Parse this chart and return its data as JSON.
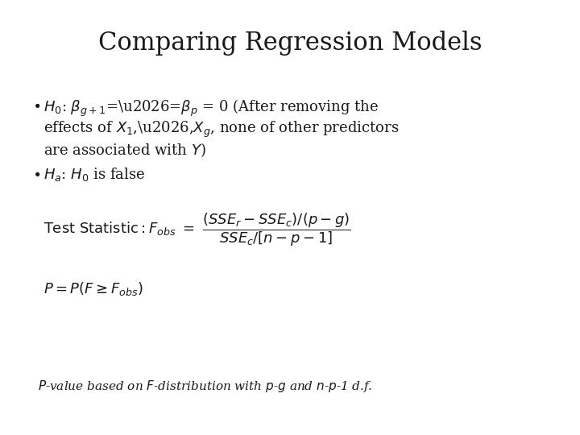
{
  "title": "Comparing Regression Models",
  "title_fontsize": 22,
  "background_color": "#ffffff",
  "text_color": "#1a1a1a",
  "bullet_fontsize": 13,
  "formula_fontsize": 13,
  "footnote_fontsize": 11
}
